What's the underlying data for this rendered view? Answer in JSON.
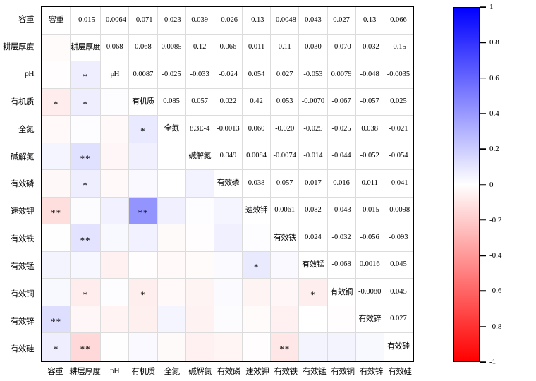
{
  "chart_data": {
    "type": "heatmap",
    "title": "",
    "variables": [
      "容重",
      "耕层厚度",
      "pH",
      "有机质",
      "全氮",
      "碱解氮",
      "有效磷",
      "速效钾",
      "有效铁",
      "有效锰",
      "有效铜",
      "有效锌",
      "有效硅"
    ],
    "correlations_upper": [
      [
        "-0.015",
        "-0.0064",
        "-0.071",
        "-0.023",
        "0.039",
        "-0.026",
        "-0.13",
        "-0.0048",
        "0.043",
        "0.027",
        "0.13",
        "0.066"
      ],
      [
        "0.068",
        "0.068",
        "0.0085",
        "0.12",
        "0.066",
        "0.011",
        "0.11",
        "0.030",
        "-0.070",
        "-0.032",
        "-0.15"
      ],
      [
        "0.0087",
        "-0.025",
        "-0.033",
        "-0.024",
        "0.054",
        "0.027",
        "-0.053",
        "0.0079",
        "-0.048",
        "-0.0035"
      ],
      [
        "0.085",
        "0.057",
        "0.022",
        "0.42",
        "0.053",
        "-0.0070",
        "-0.067",
        "-0.057",
        "0.025"
      ],
      [
        "8.3E-4",
        "-0.0013",
        "0.060",
        "-0.020",
        "-0.025",
        "-0.025",
        "0.038",
        "-0.021"
      ],
      [
        "0.049",
        "0.0084",
        "-0.0074",
        "-0.014",
        "-0.044",
        "-0.052",
        "-0.054"
      ],
      [
        "0.038",
        "0.057",
        "0.017",
        "0.016",
        "0.011",
        "-0.041"
      ],
      [
        "0.0061",
        "0.082",
        "-0.043",
        "-0.015",
        "-0.0098"
      ],
      [
        "0.024",
        "-0.032",
        "-0.056",
        "-0.093"
      ],
      [
        "-0.068",
        "0.0016",
        "0.045"
      ],
      [
        "-0.0080",
        "0.045"
      ],
      [
        "0.027"
      ],
      []
    ],
    "significance_stars": [
      {
        "row": 2,
        "col": 1,
        "stars": "*"
      },
      {
        "row": 3,
        "col": 0,
        "stars": "*"
      },
      {
        "row": 3,
        "col": 1,
        "stars": "*"
      },
      {
        "row": 4,
        "col": 3,
        "stars": "*"
      },
      {
        "row": 5,
        "col": 1,
        "stars": "**"
      },
      {
        "row": 6,
        "col": 1,
        "stars": "*"
      },
      {
        "row": 7,
        "col": 0,
        "stars": "**"
      },
      {
        "row": 7,
        "col": 3,
        "stars": "**"
      },
      {
        "row": 8,
        "col": 1,
        "stars": "**"
      },
      {
        "row": 9,
        "col": 7,
        "stars": "*"
      },
      {
        "row": 10,
        "col": 1,
        "stars": "*"
      },
      {
        "row": 10,
        "col": 3,
        "stars": "*"
      },
      {
        "row": 10,
        "col": 9,
        "stars": "*"
      },
      {
        "row": 11,
        "col": 0,
        "stars": "**"
      },
      {
        "row": 12,
        "col": 0,
        "stars": "*"
      },
      {
        "row": 12,
        "col": 1,
        "stars": "**"
      },
      {
        "row": 12,
        "col": 8,
        "stars": "**"
      }
    ],
    "colorbar": {
      "min": -1,
      "max": 1,
      "ticks": [
        "1",
        "0.8",
        "0.6",
        "0.4",
        "0.2",
        "0",
        "-0.2",
        "-0.4",
        "-0.6",
        "-0.8",
        "-1"
      ],
      "color_max": "#0000ff",
      "color_mid": "#ffffff",
      "color_min": "#ff0000"
    },
    "layout": {
      "grid": true,
      "legend_position": "right-colorbar",
      "diagonal": "variable-labels",
      "upper_triangle": "values",
      "lower_triangle": "colored-cells-with-stars"
    }
  }
}
